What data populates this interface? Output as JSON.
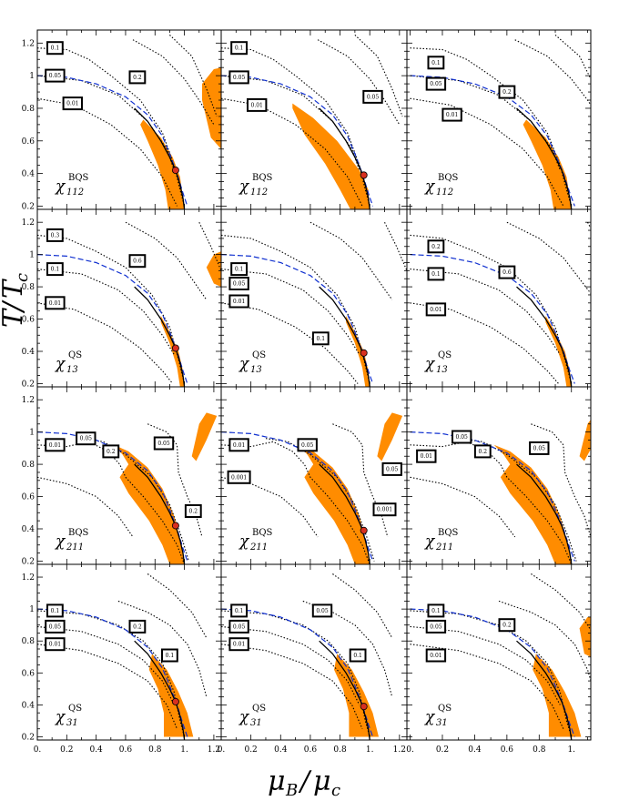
{
  "figure": {
    "xlabel_main": "μ",
    "xlabel_sub": "B",
    "xlabel_sep": "/",
    "xlabel_main2": "μ",
    "xlabel_sub2": "c",
    "ylabel_main": "T",
    "ylabel_sep": "/",
    "ylabel_main2": "T",
    "ylabel_sub2": "c",
    "x_tick_labels": [
      "0.",
      "0.2",
      "0.4",
      "0.6",
      "0.8",
      "1.",
      "1.2"
    ],
    "y_tick_labels": [
      "0.2",
      "0.4",
      "0.6",
      "0.8",
      "1",
      "1.2"
    ],
    "colors": {
      "fill": "#ff8c00",
      "dashed_line": "#1030d0",
      "crossover": "#000000",
      "contour": "#000000",
      "critical_point": "#d83020"
    }
  },
  "chart_data": [
    {
      "type": "line",
      "row": 0,
      "col": 0,
      "symbol": "χ",
      "symbol_sub": "112",
      "symbol_sup": "BQS",
      "xlim": [
        0,
        1.25
      ],
      "ylim": [
        0.18,
        1.28
      ],
      "critical_point": [
        0.94,
        0.42
      ],
      "contour_labels": [
        {
          "text": "0.1",
          "x": 0.12,
          "y": 1.17
        },
        {
          "text": "0.05",
          "x": 0.12,
          "y": 1.0
        },
        {
          "text": "0.2",
          "x": 0.68,
          "y": 0.99
        },
        {
          "text": "0.01",
          "x": 0.24,
          "y": 0.83
        }
      ]
    },
    {
      "type": "line",
      "row": 0,
      "col": 1,
      "symbol": "χ",
      "symbol_sub": "112",
      "symbol_sup": "BQS",
      "xlim": [
        0,
        1.25
      ],
      "ylim": [
        0.18,
        1.28
      ],
      "critical_point": [
        0.96,
        0.39
      ],
      "contour_labels": [
        {
          "text": "0.1",
          "x": 0.12,
          "y": 1.17
        },
        {
          "text": "0.05",
          "x": 0.12,
          "y": 0.99
        },
        {
          "text": "0.01",
          "x": 0.24,
          "y": 0.82
        },
        {
          "text": "0.05",
          "x": 1.02,
          "y": 0.87
        }
      ]
    },
    {
      "type": "line",
      "row": 0,
      "col": 2,
      "symbol": "χ",
      "symbol_sub": "112",
      "symbol_sup": "BQS",
      "xlim": [
        -0.02,
        1.12
      ],
      "ylim": [
        0.18,
        1.28
      ],
      "critical_point": null,
      "contour_labels": [
        {
          "text": "0.1",
          "x": 0.16,
          "y": 1.08
        },
        {
          "text": "0.05",
          "x": 0.16,
          "y": 0.95
        },
        {
          "text": "0.2",
          "x": 0.6,
          "y": 0.9
        },
        {
          "text": "0.01",
          "x": 0.26,
          "y": 0.76
        }
      ]
    },
    {
      "type": "line",
      "row": 1,
      "col": 0,
      "symbol": "χ",
      "symbol_sub": "13",
      "symbol_sup": "QS",
      "xlim": [
        0,
        1.25
      ],
      "ylim": [
        0.18,
        1.28
      ],
      "critical_point": [
        0.94,
        0.42
      ],
      "contour_labels": [
        {
          "text": "0.3",
          "x": 0.12,
          "y": 1.12
        },
        {
          "text": "0.1",
          "x": 0.12,
          "y": 0.91
        },
        {
          "text": "0.6",
          "x": 0.68,
          "y": 0.96
        },
        {
          "text": "0.01",
          "x": 0.12,
          "y": 0.7
        }
      ]
    },
    {
      "type": "line",
      "row": 1,
      "col": 1,
      "symbol": "χ",
      "symbol_sub": "13",
      "symbol_sup": "QS",
      "xlim": [
        0,
        1.25
      ],
      "ylim": [
        0.18,
        1.28
      ],
      "critical_point": [
        0.96,
        0.39
      ],
      "contour_labels": [
        {
          "text": "0.1",
          "x": 0.12,
          "y": 0.91
        },
        {
          "text": "0.05",
          "x": 0.12,
          "y": 0.82
        },
        {
          "text": "0.01",
          "x": 0.12,
          "y": 0.71
        },
        {
          "text": "0.1",
          "x": 0.67,
          "y": 0.48
        }
      ]
    },
    {
      "type": "line",
      "row": 1,
      "col": 2,
      "symbol": "χ",
      "symbol_sub": "13",
      "symbol_sup": "QS",
      "xlim": [
        -0.02,
        1.12
      ],
      "ylim": [
        0.18,
        1.28
      ],
      "critical_point": null,
      "contour_labels": [
        {
          "text": "0.2",
          "x": 0.16,
          "y": 1.05
        },
        {
          "text": "0.1",
          "x": 0.16,
          "y": 0.88
        },
        {
          "text": "0.6",
          "x": 0.6,
          "y": 0.89
        },
        {
          "text": "0.01",
          "x": 0.16,
          "y": 0.66
        }
      ]
    },
    {
      "type": "line",
      "row": 2,
      "col": 0,
      "symbol": "χ",
      "symbol_sub": "211",
      "symbol_sup": "BQS",
      "xlim": [
        0,
        1.25
      ],
      "ylim": [
        0.18,
        1.28
      ],
      "critical_point": [
        0.94,
        0.42
      ],
      "contour_labels": [
        {
          "text": "0.05",
          "x": 0.33,
          "y": 0.96
        },
        {
          "text": "0.01",
          "x": 0.12,
          "y": 0.92
        },
        {
          "text": "0.2",
          "x": 0.5,
          "y": 0.88
        },
        {
          "text": "0.05",
          "x": 0.86,
          "y": 0.93
        },
        {
          "text": "0.2",
          "x": 1.06,
          "y": 0.51
        }
      ]
    },
    {
      "type": "line",
      "row": 2,
      "col": 1,
      "symbol": "χ",
      "symbol_sub": "211",
      "symbol_sup": "BQS",
      "xlim": [
        0,
        1.25
      ],
      "ylim": [
        0.18,
        1.28
      ],
      "critical_point": [
        0.96,
        0.39
      ],
      "contour_labels": [
        {
          "text": "0.01",
          "x": 0.12,
          "y": 0.92
        },
        {
          "text": "0.05",
          "x": 0.58,
          "y": 0.92
        },
        {
          "text": "0.001",
          "x": 0.12,
          "y": 0.72
        },
        {
          "text": "0.05",
          "x": 1.15,
          "y": 0.77
        },
        {
          "text": "0.001",
          "x": 1.1,
          "y": 0.52
        }
      ]
    },
    {
      "type": "line",
      "row": 2,
      "col": 2,
      "symbol": "χ",
      "symbol_sub": "211",
      "symbol_sup": "BQS",
      "xlim": [
        -0.02,
        1.12
      ],
      "ylim": [
        0.18,
        1.28
      ],
      "critical_point": null,
      "contour_labels": [
        {
          "text": "0.05",
          "x": 0.32,
          "y": 0.97
        },
        {
          "text": "0.01",
          "x": 0.1,
          "y": 0.85
        },
        {
          "text": "0.2",
          "x": 0.45,
          "y": 0.88
        },
        {
          "text": "0.05",
          "x": 0.8,
          "y": 0.9
        }
      ]
    },
    {
      "type": "line",
      "row": 3,
      "col": 0,
      "symbol": "χ",
      "symbol_sub": "31",
      "symbol_sup": "QS",
      "xlim": [
        0,
        1.25
      ],
      "ylim": [
        0.18,
        1.28
      ],
      "critical_point": [
        0.94,
        0.42
      ],
      "contour_labels": [
        {
          "text": "0.1",
          "x": 0.12,
          "y": 0.99
        },
        {
          "text": "0.05",
          "x": 0.12,
          "y": 0.89
        },
        {
          "text": "0.2",
          "x": 0.68,
          "y": 0.89
        },
        {
          "text": "0.01",
          "x": 0.12,
          "y": 0.78
        },
        {
          "text": "0.1",
          "x": 0.9,
          "y": 0.71
        }
      ]
    },
    {
      "type": "line",
      "row": 3,
      "col": 1,
      "symbol": "χ",
      "symbol_sub": "31",
      "symbol_sup": "QS",
      "xlim": [
        0,
        1.25
      ],
      "ylim": [
        0.18,
        1.28
      ],
      "critical_point": [
        0.96,
        0.39
      ],
      "contour_labels": [
        {
          "text": "0.1",
          "x": 0.12,
          "y": 0.99
        },
        {
          "text": "0.05",
          "x": 0.68,
          "y": 0.99
        },
        {
          "text": "0.05",
          "x": 0.12,
          "y": 0.89
        },
        {
          "text": "0.01",
          "x": 0.12,
          "y": 0.78
        },
        {
          "text": "0.1",
          "x": 0.92,
          "y": 0.71
        }
      ]
    },
    {
      "type": "line",
      "row": 3,
      "col": 2,
      "symbol": "χ",
      "symbol_sub": "31",
      "symbol_sup": "QS",
      "xlim": [
        -0.02,
        1.12
      ],
      "ylim": [
        0.18,
        1.28
      ],
      "critical_point": null,
      "contour_labels": [
        {
          "text": "0.1",
          "x": 0.16,
          "y": 0.99
        },
        {
          "text": "0.05",
          "x": 0.16,
          "y": 0.89
        },
        {
          "text": "0.2",
          "x": 0.6,
          "y": 0.9
        },
        {
          "text": "0.01",
          "x": 0.16,
          "y": 0.71
        }
      ]
    }
  ]
}
